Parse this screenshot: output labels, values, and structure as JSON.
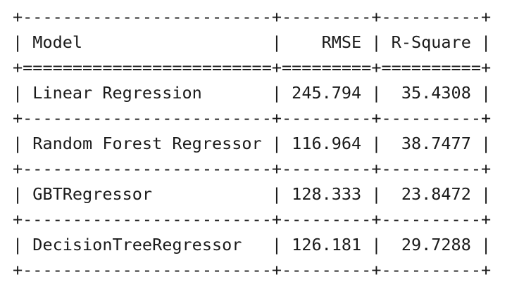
{
  "table": {
    "headers": [
      "Model",
      "RMSE",
      "R-Square"
    ],
    "rows": [
      [
        "Linear Regression",
        "245.794",
        "35.4308"
      ],
      [
        "Random Forest Regressor",
        "116.964",
        "38.7477"
      ],
      [
        "GBTRegressor",
        "128.333",
        "23.8472"
      ],
      [
        "DecisionTreeRegressor",
        "126.181",
        "29.7288"
      ]
    ]
  },
  "colors": {
    "text": "#1a1a1a",
    "background": "#ffffff"
  }
}
